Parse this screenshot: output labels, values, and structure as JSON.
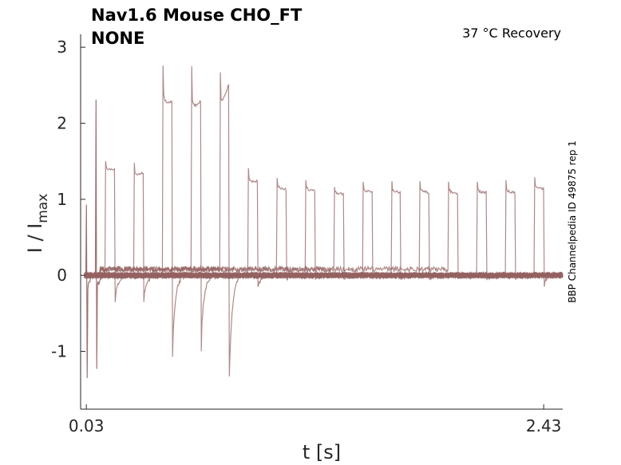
{
  "chart_data": {
    "type": "line",
    "title_line1": "Nav1.6  Mouse  CHO_FT",
    "title_line2": "NONE",
    "annotation": "37 °C  Recovery",
    "side_label": "BBP Channelpedia ID 49875 rep 1",
    "xlabel": "t [s]",
    "ylabel_main": "I / I",
    "ylabel_sub": "max",
    "xlim": [
      0.0,
      2.53
    ],
    "ylim": [
      -1.76,
      3.17
    ],
    "xticks": [
      {
        "value": 0.03,
        "label": "0.03"
      },
      {
        "value": 2.43,
        "label": "2.43"
      }
    ],
    "yticks": [
      {
        "value": 3,
        "label": "3"
      },
      {
        "value": 2,
        "label": "2"
      },
      {
        "value": 1,
        "label": "1"
      },
      {
        "value": 0,
        "label": "0"
      },
      {
        "value": -1,
        "label": "-1"
      }
    ],
    "grid": false,
    "trace_color": "#946262",
    "spikes": [
      {
        "t": 0.03,
        "peak": 0.93,
        "trough": -1.35
      },
      {
        "t": 0.08,
        "peak": 2.31,
        "trough": -1.23
      }
    ],
    "pulses": [
      {
        "start": 0.13,
        "end": 0.18,
        "peak": 1.5,
        "plateau": 1.39,
        "plateau_end": 1.4,
        "trough": -0.35
      },
      {
        "start": 0.28,
        "end": 0.33,
        "peak": 1.48,
        "plateau": 1.3,
        "plateau_end": 1.35,
        "trough": -0.35
      },
      {
        "start": 0.43,
        "end": 0.48,
        "peak": 2.76,
        "plateau": 2.25,
        "plateau_end": 2.28,
        "trough": -1.07
      },
      {
        "start": 0.58,
        "end": 0.63,
        "peak": 2.75,
        "plateau": 2.15,
        "plateau_end": 2.3,
        "trough": -1.0
      },
      {
        "start": 0.73,
        "end": 0.78,
        "peak": 2.67,
        "plateau": 2.15,
        "plateau_end": 2.54,
        "trough": -1.33
      },
      {
        "start": 0.88,
        "end": 0.93,
        "peak": 1.41,
        "plateau": 1.22,
        "plateau_end": 1.24,
        "trough": -0.15
      },
      {
        "start": 1.03,
        "end": 1.08,
        "peak": 1.28,
        "plateau": 1.15,
        "plateau_end": 1.13,
        "trough": -0.05
      },
      {
        "start": 1.18,
        "end": 1.23,
        "peak": 1.25,
        "plateau": 1.13,
        "plateau_end": 1.11,
        "trough": -0.05
      },
      {
        "start": 1.33,
        "end": 1.38,
        "peak": 1.16,
        "plateau": 1.08,
        "plateau_end": 1.07,
        "trough": -0.05
      },
      {
        "start": 1.48,
        "end": 1.53,
        "peak": 1.23,
        "plateau": 1.11,
        "plateau_end": 1.1,
        "trough": -0.05
      },
      {
        "start": 1.63,
        "end": 1.68,
        "peak": 1.24,
        "plateau": 1.1,
        "plateau_end": 1.09,
        "trough": -0.05
      },
      {
        "start": 1.78,
        "end": 1.83,
        "peak": 1.24,
        "plateau": 1.1,
        "plateau_end": 1.09,
        "trough": -0.05
      },
      {
        "start": 1.93,
        "end": 1.98,
        "peak": 1.23,
        "plateau": 1.09,
        "plateau_end": 1.08,
        "trough": -0.05
      },
      {
        "start": 2.08,
        "end": 2.13,
        "peak": 1.23,
        "plateau": 1.09,
        "plateau_end": 1.09,
        "trough": -0.05
      },
      {
        "start": 2.23,
        "end": 2.28,
        "peak": 1.25,
        "plateau": 1.1,
        "plateau_end": 1.09,
        "trough": -0.05
      },
      {
        "start": 2.38,
        "end": 2.43,
        "peak": 1.29,
        "plateau": 1.15,
        "plateau_end": 1.14,
        "trough": -0.15
      }
    ]
  }
}
